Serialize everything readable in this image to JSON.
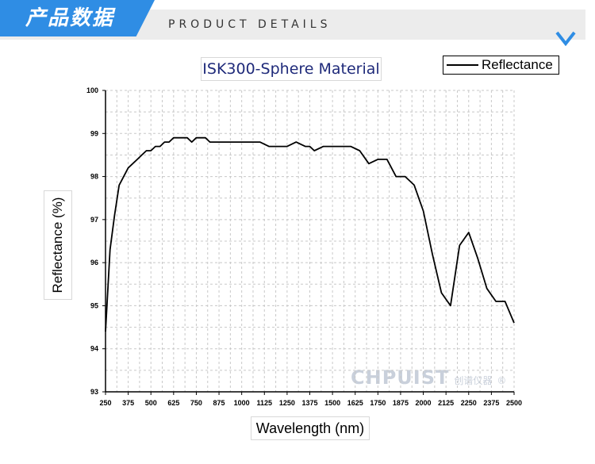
{
  "banner": {
    "title": "产品数据",
    "subtitle": "PRODUCT DETAILS",
    "accent_color": "#2f8de4",
    "icon": "chevron-down-icon"
  },
  "watermark": {
    "main": "CHPUIST",
    "cn": "创谱仪器",
    "mark": "®"
  },
  "chart_data": {
    "type": "line",
    "title": "ISK300-Sphere Material",
    "xlabel": "Wavelength (nm)",
    "ylabel": "Reflectance (%)",
    "xlim": [
      250,
      2500
    ],
    "ylim": [
      93,
      100
    ],
    "xticks": [
      250,
      375,
      500,
      625,
      750,
      875,
      1000,
      1125,
      1250,
      1375,
      1500,
      1625,
      1750,
      1875,
      2000,
      2125,
      2250,
      2375,
      2500
    ],
    "xtick_labels": [
      "250",
      "375",
      "500",
      "625",
      "750",
      "875",
      "1000",
      "1125",
      "1250",
      "1375",
      "1500",
      "1625",
      "1750",
      "1875",
      "2000",
      "2125",
      "2250",
      "2375",
      "2500"
    ],
    "yticks": [
      93,
      94,
      95,
      96,
      97,
      98,
      99,
      100
    ],
    "ytick_labels": [
      "93",
      "94",
      "95",
      "96",
      "97",
      "98",
      "99",
      "100"
    ],
    "grid": true,
    "legend_position": "top-right",
    "series": [
      {
        "name": "Reflectance",
        "color": "#000000",
        "x": [
          250,
          275,
          300,
          325,
          350,
          375,
          400,
          425,
          450,
          475,
          500,
          525,
          550,
          575,
          600,
          625,
          650,
          675,
          700,
          725,
          750,
          775,
          800,
          825,
          850,
          900,
          950,
          1000,
          1050,
          1100,
          1150,
          1200,
          1250,
          1300,
          1350,
          1375,
          1400,
          1450,
          1500,
          1550,
          1600,
          1650,
          1700,
          1750,
          1800,
          1850,
          1900,
          1950,
          2000,
          2050,
          2100,
          2150,
          2200,
          2250,
          2300,
          2350,
          2400,
          2450,
          2500
        ],
        "y": [
          94.4,
          96.3,
          97.1,
          97.8,
          98.0,
          98.2,
          98.3,
          98.4,
          98.5,
          98.6,
          98.6,
          98.7,
          98.7,
          98.8,
          98.8,
          98.9,
          98.9,
          98.9,
          98.9,
          98.8,
          98.9,
          98.9,
          98.9,
          98.8,
          98.8,
          98.8,
          98.8,
          98.8,
          98.8,
          98.8,
          98.7,
          98.7,
          98.7,
          98.8,
          98.7,
          98.7,
          98.6,
          98.7,
          98.7,
          98.7,
          98.7,
          98.6,
          98.3,
          98.4,
          98.4,
          98.0,
          98.0,
          97.8,
          97.2,
          96.2,
          95.3,
          95.0,
          96.4,
          96.7,
          96.1,
          95.4,
          95.1,
          95.1,
          94.6
        ]
      }
    ]
  }
}
